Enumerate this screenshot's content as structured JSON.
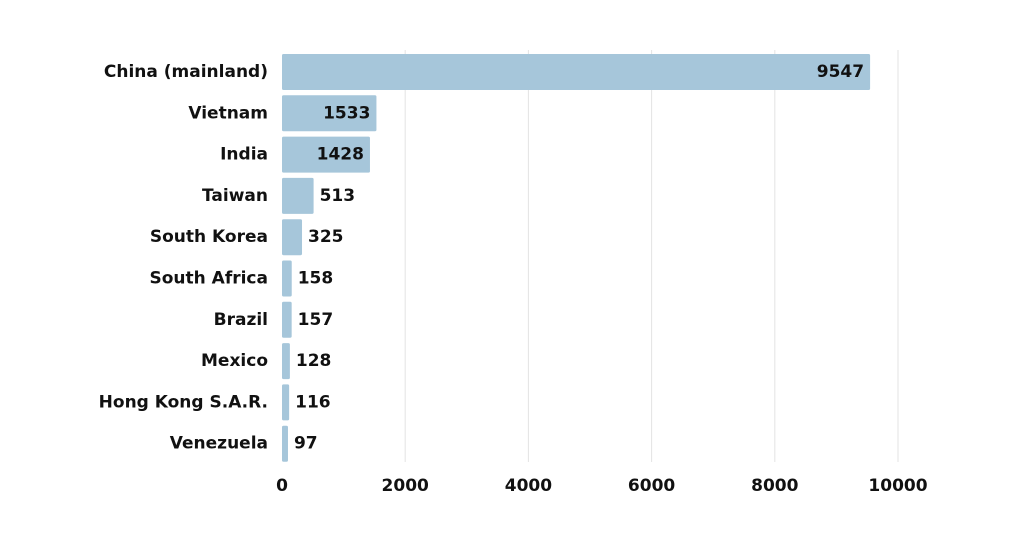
{
  "chart_data": {
    "type": "bar",
    "orientation": "horizontal",
    "categories": [
      "China (mainland)",
      "Vietnam",
      "India",
      "Taiwan",
      "South Korea",
      "South Africa",
      "Brazil",
      "Mexico",
      "Hong Kong S.A.R.",
      "Venezuela"
    ],
    "values": [
      9547,
      1533,
      1428,
      513,
      325,
      158,
      157,
      128,
      116,
      97
    ],
    "value_labels": [
      "9547",
      "1533",
      "1428",
      "513",
      "325",
      "158",
      "157",
      "128",
      "116",
      "97"
    ],
    "xlim": [
      0,
      10000
    ],
    "x_ticks": [
      0,
      2000,
      4000,
      6000,
      8000,
      10000
    ],
    "x_tick_labels": [
      "0",
      "2000",
      "4000",
      "6000",
      "8000",
      "10000"
    ],
    "grid": true,
    "bar_color": "#a6c6da"
  }
}
